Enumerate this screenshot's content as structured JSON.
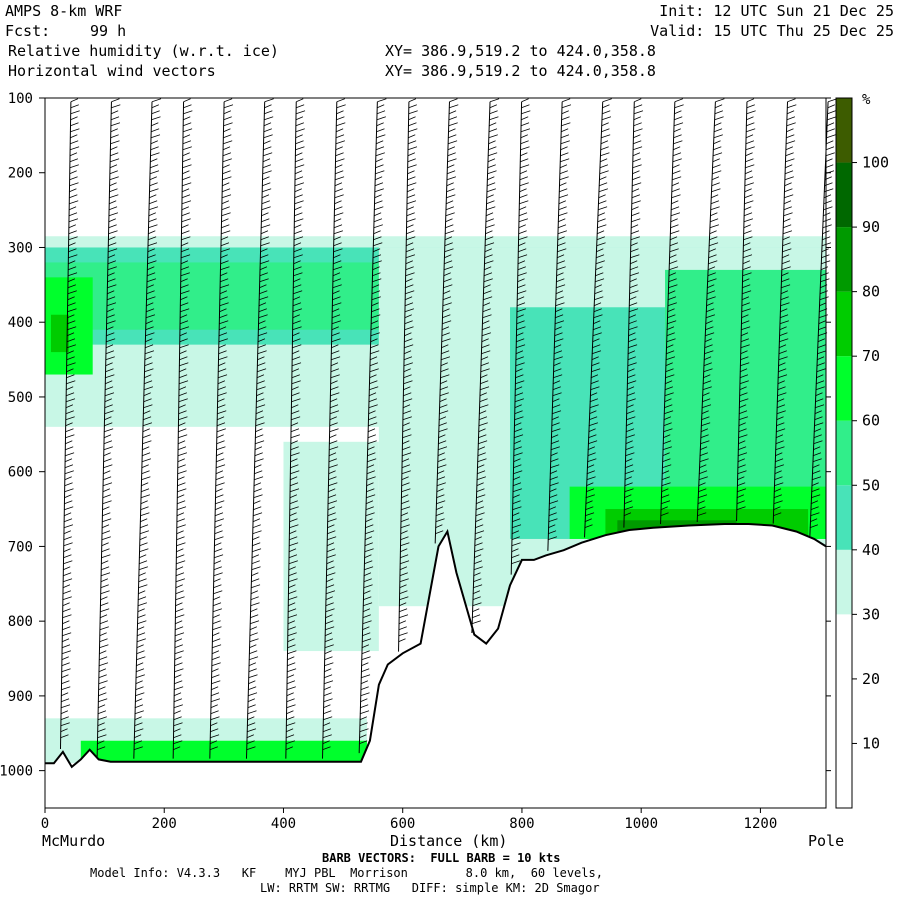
{
  "header": {
    "model": "AMPS 8-km WRF",
    "forecast_label": "Fcst:",
    "forecast_hours": "99 h",
    "init": "Init: 12 UTC Sun 21 Dec 25",
    "valid": "Valid: 15 UTC Thu 25 Dec 25",
    "field1": "Relative humidity (w.r.t. ice)",
    "field2": "Horizontal wind vectors",
    "xy1": "XY= 386.9,519.2 to 424.0,358.8",
    "xy2": "XY= 386.9,519.2 to 424.0,358.8"
  },
  "axes": {
    "x_start_label": "McMurdo",
    "x_end_label": "Pole",
    "x_title": "Distance (km)"
  },
  "footer": {
    "barb": "BARB VECTORS:  FULL BARB = 10 kts",
    "model_info": "Model Info: V4.3.3   KF    MYJ PBL  Morrison        8.0 km,  60 levels,",
    "physics": "LW: RRTM SW: RRTMG   DIFF: simple KM: 2D Smagor"
  },
  "colors": {
    "rh_bins": [
      "#ffffff",
      "#ffffff",
      "#ffffff",
      "#c8f7e6",
      "#48e3b8",
      "#31ee8a",
      "#00ff2c",
      "#00cc00",
      "#009a00",
      "#006800",
      "#3d5c00"
    ],
    "terrain": "#000000",
    "barb": "#000000"
  },
  "chart_data": {
    "type": "heatmap",
    "title": "Relative humidity (w.r.t. ice)",
    "overlay": "Horizontal wind vectors",
    "xlabel": "Distance (km)",
    "ylabel": "",
    "xlim": [
      0,
      1310
    ],
    "ylim": [
      1050,
      100
    ],
    "x_ticks": [
      0,
      200,
      400,
      600,
      800,
      1000,
      1200
    ],
    "y_ticks": [
      100,
      200,
      300,
      400,
      500,
      600,
      700,
      800,
      900,
      1000
    ],
    "colorbar": {
      "unit": "%",
      "ticks": [
        10,
        20,
        30,
        40,
        50,
        60,
        70,
        80,
        90,
        100
      ],
      "bins": [
        0,
        10,
        20,
        30,
        40,
        50,
        60,
        70,
        80,
        90,
        100,
        110
      ]
    },
    "terrain_profile": {
      "x_km": [
        0,
        15,
        30,
        45,
        60,
        75,
        90,
        110,
        150,
        200,
        300,
        400,
        450,
        530,
        545,
        560,
        575,
        600,
        630,
        660,
        675,
        690,
        720,
        740,
        760,
        780,
        800,
        820,
        840,
        870,
        900,
        940,
        980,
        1020,
        1080,
        1140,
        1180,
        1220,
        1260,
        1290,
        1310
      ],
      "pressure_hpa": [
        990,
        990,
        975,
        995,
        985,
        972,
        985,
        988,
        988,
        988,
        988,
        988,
        988,
        988,
        960,
        885,
        858,
        843,
        830,
        700,
        680,
        735,
        818,
        830,
        810,
        752,
        718,
        718,
        712,
        705,
        695,
        685,
        678,
        675,
        672,
        670,
        670,
        672,
        680,
        690,
        700
      ]
    },
    "rh_regions": [
      {
        "value": 35,
        "x_km": [
          0,
          1310
        ],
        "p_hpa": [
          285,
          540
        ]
      },
      {
        "value": 45,
        "x_km": [
          0,
          1310
        ],
        "p_hpa": [
          300,
          430
        ]
      },
      {
        "value": 55,
        "x_km": [
          0,
          560
        ],
        "p_hpa": [
          320,
          410
        ]
      },
      {
        "value": 65,
        "x_km": [
          0,
          80
        ],
        "p_hpa": [
          340,
          470
        ]
      },
      {
        "value": 75,
        "x_km": [
          10,
          40
        ],
        "p_hpa": [
          390,
          440
        ]
      },
      {
        "value": 35,
        "x_km": [
          560,
          1310
        ],
        "p_hpa": [
          300,
          780
        ]
      },
      {
        "value": 45,
        "x_km": [
          780,
          1310
        ],
        "p_hpa": [
          380,
          690
        ]
      },
      {
        "value": 55,
        "x_km": [
          1040,
          1310
        ],
        "p_hpa": [
          330,
          640
        ]
      },
      {
        "value": 65,
        "x_km": [
          880,
          1310
        ],
        "p_hpa": [
          620,
          690
        ]
      },
      {
        "value": 75,
        "x_km": [
          940,
          1280
        ],
        "p_hpa": [
          650,
          690
        ]
      },
      {
        "value": 85,
        "x_km": [
          960,
          1160
        ],
        "p_hpa": [
          665,
          690
        ]
      },
      {
        "value": 35,
        "x_km": [
          0,
          540
        ],
        "p_hpa": [
          930,
          990
        ]
      },
      {
        "value": 65,
        "x_km": [
          60,
          540
        ],
        "p_hpa": [
          960,
          990
        ]
      },
      {
        "value": 35,
        "x_km": [
          400,
          560
        ],
        "p_hpa": [
          560,
          840
        ]
      }
    ]
  }
}
